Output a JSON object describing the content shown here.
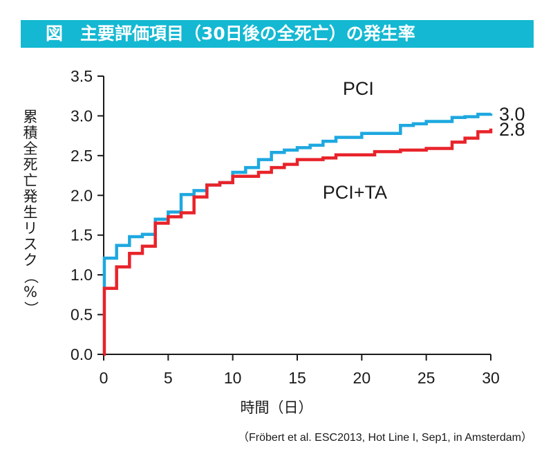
{
  "header": {
    "title": "図　主要評価項目（30日後の全死亡）の発生率"
  },
  "source_note": "（Fröbert et al. ESC2013, Hot Line I, Sep1, in Amsterdam）",
  "chart_data": {
    "type": "line",
    "title": "図　主要評価項目（30日後の全死亡）の発生率",
    "xlabel": "時間（日）",
    "ylabel": "累積全死亡発生リスク（%）",
    "xlim": [
      0,
      30
    ],
    "ylim": [
      0,
      3.5
    ],
    "x_ticks": [
      0,
      5,
      10,
      15,
      20,
      25,
      30
    ],
    "y_ticks": [
      0.0,
      0.5,
      1.0,
      1.5,
      2.0,
      2.5,
      3.0,
      3.5
    ],
    "y_tick_labels": [
      "0.0",
      "0.5",
      "1.0",
      "1.5",
      "2.0",
      "2.5",
      "3.0",
      "3.5"
    ],
    "grid": false,
    "series": [
      {
        "name": "PCI",
        "color": "#1ea8e0",
        "end_label": "3.0",
        "x": [
          0,
          0.05,
          1,
          2,
          3,
          4,
          5,
          6,
          7,
          8,
          9,
          10,
          11,
          12,
          13,
          14,
          15,
          16,
          17,
          18,
          19,
          20,
          21,
          22,
          23,
          24,
          25,
          26,
          27,
          28,
          29,
          30
        ],
        "y": [
          0.85,
          1.21,
          1.37,
          1.48,
          1.51,
          1.7,
          1.79,
          2.01,
          2.06,
          2.13,
          2.16,
          2.29,
          2.35,
          2.45,
          2.54,
          2.57,
          2.6,
          2.63,
          2.68,
          2.73,
          2.73,
          2.78,
          2.78,
          2.78,
          2.88,
          2.9,
          2.93,
          2.93,
          2.98,
          2.99,
          3.02,
          3.03
        ]
      },
      {
        "name": "PCI+TA",
        "color": "#e8232a",
        "end_label": "2.8",
        "x": [
          0,
          0.05,
          1,
          2,
          3,
          4,
          5,
          6,
          7,
          8,
          9,
          10,
          11,
          12,
          13,
          14,
          15,
          16,
          17,
          18,
          19,
          20,
          21,
          22,
          23,
          24,
          25,
          26,
          27,
          28,
          29,
          30
        ],
        "y": [
          0.0,
          0.83,
          1.1,
          1.27,
          1.36,
          1.65,
          1.73,
          1.78,
          1.98,
          2.13,
          2.16,
          2.24,
          2.24,
          2.29,
          2.35,
          2.39,
          2.45,
          2.45,
          2.47,
          2.51,
          2.51,
          2.51,
          2.55,
          2.55,
          2.57,
          2.57,
          2.59,
          2.59,
          2.67,
          2.72,
          2.8,
          2.84
        ]
      }
    ]
  }
}
